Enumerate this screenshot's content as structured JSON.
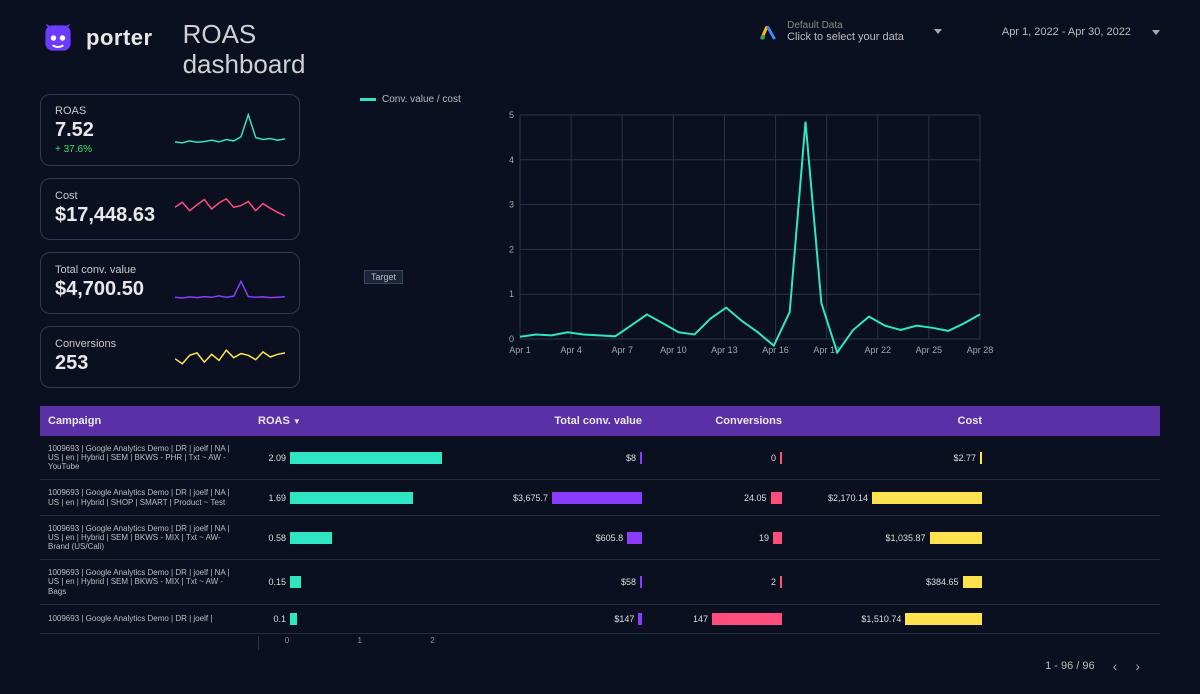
{
  "brand": {
    "name": "porter"
  },
  "title": "ROAS\ndashboard",
  "header": {
    "data_label_small": "Default Data",
    "data_label": "Click to select your data",
    "date_range": "Apr 1, 2022 - Apr 30, 2022"
  },
  "colors": {
    "teal": "#2ee6c1",
    "pink": "#ff4d7d",
    "purple": "#8b3cff",
    "yellow": "#ffe24d",
    "header_purple": "#5b2fa5",
    "bg": "#0a1020",
    "grid": "#2a3348",
    "delta_up": "#2ee66a"
  },
  "kpis": [
    {
      "id": "roas",
      "label": "ROAS",
      "value": "7.52",
      "delta": "+ 37.6%",
      "delta_color": "#2ee66a",
      "spark_color": "#2ee6c1",
      "spark": [
        0.15,
        0.12,
        0.18,
        0.14,
        0.16,
        0.2,
        0.15,
        0.22,
        0.18,
        0.3,
        0.95,
        0.28,
        0.22,
        0.25,
        0.2,
        0.24
      ]
    },
    {
      "id": "cost",
      "label": "Cost",
      "value": "$17,448.63",
      "spark_color": "#ff4d7d",
      "spark": [
        0.55,
        0.7,
        0.45,
        0.62,
        0.78,
        0.5,
        0.68,
        0.8,
        0.55,
        0.6,
        0.72,
        0.45,
        0.66,
        0.52,
        0.4,
        0.3
      ]
    },
    {
      "id": "tcv",
      "label": "Total conv. value",
      "value": "$4,700.50",
      "spark_color": "#8b3cff",
      "spark": [
        0.08,
        0.06,
        0.09,
        0.07,
        0.1,
        0.08,
        0.12,
        0.08,
        0.11,
        0.55,
        0.1,
        0.08,
        0.09,
        0.07,
        0.08,
        0.1
      ]
    },
    {
      "id": "conv",
      "label": "Conversions",
      "value": "253",
      "spark_color": "#ffe24d",
      "spark": [
        0.45,
        0.3,
        0.55,
        0.62,
        0.35,
        0.58,
        0.4,
        0.7,
        0.48,
        0.6,
        0.55,
        0.42,
        0.65,
        0.5,
        0.58,
        0.62
      ]
    }
  ],
  "chart": {
    "legend": "Conv. value / cost",
    "line_color": "#2ee6c1",
    "ylim": [
      0,
      5
    ],
    "ytick_step": 1,
    "target_label": "Target",
    "x_labels": [
      "Apr 1",
      "Apr 4",
      "Apr 7",
      "Apr 10",
      "Apr 13",
      "Apr 16",
      "Apr 19",
      "Apr 22",
      "Apr 25",
      "Apr 28"
    ],
    "series": [
      0.05,
      0.1,
      0.08,
      0.15,
      0.1,
      0.08,
      0.06,
      0.3,
      0.55,
      0.35,
      0.15,
      0.1,
      0.45,
      0.7,
      0.4,
      0.15,
      -0.15,
      0.6,
      4.85,
      0.8,
      -0.3,
      0.2,
      0.5,
      0.3,
      0.2,
      0.3,
      0.25,
      0.18,
      0.35,
      0.55
    ]
  },
  "table": {
    "columns": [
      "Campaign",
      "ROAS",
      "Total conv. value",
      "Conversions",
      "Cost"
    ],
    "sort_col": "ROAS",
    "roas_max": 2.2,
    "tcv_max": 3675.7,
    "conv_max": 147,
    "cost_max": 2170.14,
    "roas_ticks": [
      "0",
      "1",
      "2"
    ],
    "rows": [
      {
        "campaign": "1009693 | Google Analytics Demo | DR | joelf | NA | US | en | Hybrid | SEM | BKWS - PHR | Txt ~ AW - YouTube",
        "roas": 2.09,
        "roas_txt": "2.09",
        "tcv": 8,
        "tcv_txt": "$8",
        "conv": 0,
        "conv_txt": "0",
        "cost": 2.77,
        "cost_txt": "$2.77"
      },
      {
        "campaign": "1009693 | Google Analytics Demo | DR | joelf | NA | US | en | Hybrid | SHOP | SMART | Product ~ Test",
        "roas": 1.69,
        "roas_txt": "1.69",
        "tcv": 3675.7,
        "tcv_txt": "$3,675.7",
        "conv": 24.05,
        "conv_txt": "24.05",
        "cost": 2170.14,
        "cost_txt": "$2,170.14"
      },
      {
        "campaign": "1009693 | Google Analytics Demo | DR | joelf | NA | US | en | Hybrid | SEM | BKWS - MIX | Txt ~ AW-Brand (US/Cali)",
        "roas": 0.58,
        "roas_txt": "0.58",
        "tcv": 605.8,
        "tcv_txt": "$605.8",
        "conv": 19,
        "conv_txt": "19",
        "cost": 1035.87,
        "cost_txt": "$1,035.87"
      },
      {
        "campaign": "1009693 | Google Analytics Demo | DR | joelf | NA | US | en | Hybrid | SEM | BKWS - MIX | Txt ~ AW - Bags",
        "roas": 0.15,
        "roas_txt": "0.15",
        "tcv": 58,
        "tcv_txt": "$58",
        "conv": 2,
        "conv_txt": "2",
        "cost": 384.65,
        "cost_txt": "$384.65"
      },
      {
        "campaign": "1009693 | Google Analytics Demo | DR | joelf |",
        "roas": 0.1,
        "roas_txt": "0.1",
        "tcv": 147,
        "tcv_txt": "$147",
        "conv": 147,
        "conv_txt": "147",
        "cost": 1510.74,
        "cost_txt": "$1,510.74"
      }
    ]
  },
  "pager": {
    "text": "1 - 96 / 96"
  }
}
